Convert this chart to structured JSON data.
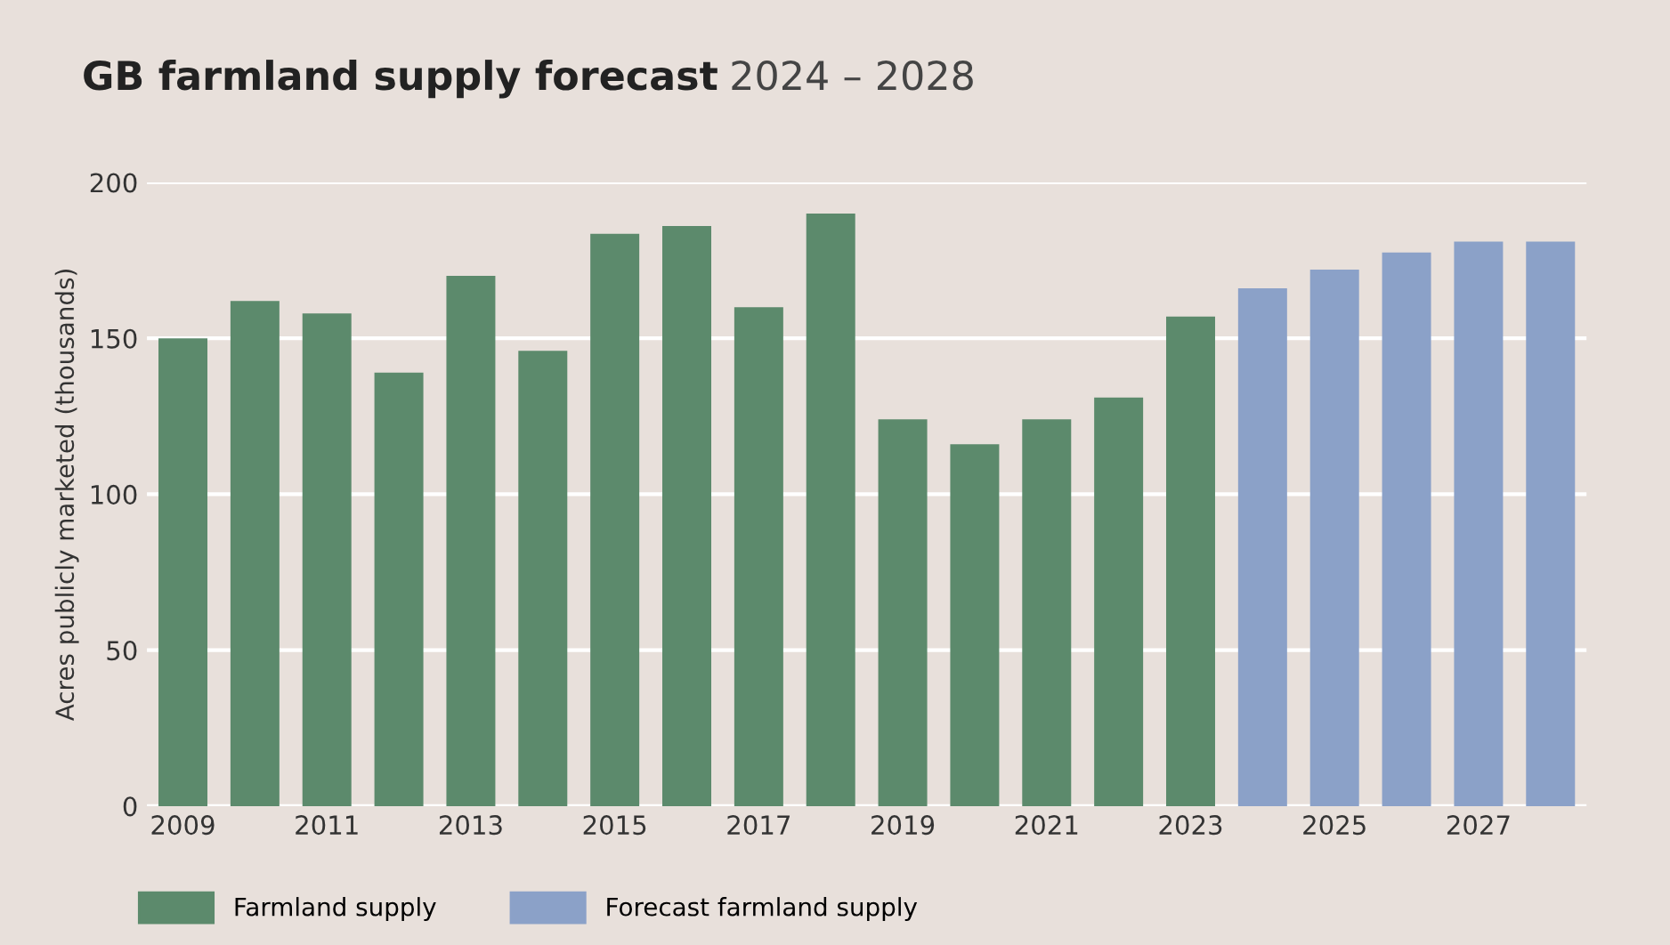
{
  "chart_data": {
    "type": "bar",
    "title": "GB farmland supply forecast",
    "subtitle": "2024 – 2028",
    "ylabel": "Acres publicly marketed (thousands)",
    "categories": [
      "2009",
      null,
      "2011",
      null,
      "2013",
      null,
      "2015",
      null,
      "2017",
      null,
      "2019",
      null,
      "2021",
      null,
      "2023",
      null,
      "2025",
      null,
      "2027",
      null
    ],
    "series": [
      {
        "name": "Farmland supply",
        "color": "#5c8a6c",
        "values": [
          150,
          162,
          158,
          139,
          170,
          146,
          183.5,
          186,
          160,
          190,
          124,
          116,
          124,
          131,
          157,
          null,
          null,
          null,
          null,
          null
        ]
      },
      {
        "name": "Forecast farmland supply",
        "color": "#8ba1c8",
        "values": [
          null,
          null,
          null,
          null,
          null,
          null,
          null,
          null,
          null,
          null,
          null,
          null,
          null,
          null,
          null,
          166,
          172,
          177.5,
          181,
          181
        ]
      }
    ],
    "ylim": [
      0,
      200
    ],
    "yticks": [
      0,
      50,
      100,
      150,
      200
    ],
    "grid": "y",
    "legend": "bottom left"
  }
}
